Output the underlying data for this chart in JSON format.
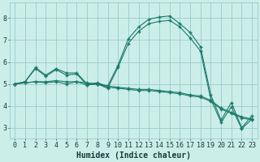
{
  "xlabel": "Humidex (Indice chaleur)",
  "bg_color": "#cceee8",
  "grid_color": "#99cccc",
  "line_color": "#1a7a6a",
  "xlim": [
    -0.5,
    23.5
  ],
  "ylim": [
    2.5,
    8.7
  ],
  "xticks": [
    0,
    1,
    2,
    3,
    4,
    5,
    6,
    7,
    8,
    9,
    10,
    11,
    12,
    13,
    14,
    15,
    16,
    17,
    18,
    19,
    20,
    21,
    22,
    23
  ],
  "yticks": [
    3,
    4,
    5,
    6,
    7,
    8
  ],
  "line1_x": [
    0,
    1,
    2,
    3,
    4,
    5,
    6,
    7,
    8,
    9,
    10,
    11,
    12,
    13,
    14,
    15,
    16,
    17,
    18,
    19,
    20,
    21,
    22,
    23
  ],
  "line1_y": [
    5.0,
    5.1,
    5.75,
    5.4,
    5.7,
    5.5,
    5.5,
    5.0,
    5.05,
    4.9,
    5.85,
    7.05,
    7.6,
    7.95,
    8.05,
    8.1,
    7.75,
    7.35,
    6.7,
    4.5,
    3.35,
    4.15,
    3.0,
    3.55
  ],
  "line2_x": [
    0,
    1,
    2,
    3,
    4,
    5,
    6,
    7,
    8,
    9,
    10,
    11,
    12,
    13,
    14,
    15,
    16,
    17,
    18,
    19,
    20,
    21,
    22,
    23
  ],
  "line2_y": [
    5.0,
    5.05,
    5.1,
    5.05,
    5.1,
    5.0,
    5.1,
    4.95,
    5.0,
    4.85,
    4.8,
    4.75,
    4.7,
    4.7,
    4.65,
    4.6,
    4.55,
    4.45,
    4.4,
    4.2,
    3.85,
    3.65,
    3.45,
    3.35
  ],
  "line3_x": [
    0,
    1,
    2,
    3,
    4,
    5,
    6,
    7,
    8,
    9,
    10,
    11,
    12,
    13,
    14,
    15,
    16,
    17,
    18,
    19,
    20,
    21,
    22,
    23
  ],
  "line3_y": [
    5.0,
    5.1,
    5.7,
    5.35,
    5.65,
    5.4,
    5.45,
    4.95,
    5.0,
    4.8,
    5.75,
    6.85,
    7.4,
    7.75,
    7.85,
    7.9,
    7.6,
    7.1,
    6.5,
    4.3,
    3.25,
    3.95,
    2.95,
    3.4
  ],
  "line4_x": [
    0,
    1,
    2,
    3,
    4,
    5,
    6,
    7,
    8,
    9,
    10,
    11,
    12,
    13,
    14,
    15,
    16,
    17,
    18,
    19,
    20,
    21,
    22,
    23
  ],
  "line4_y": [
    5.0,
    5.05,
    5.1,
    5.1,
    5.15,
    5.1,
    5.1,
    5.05,
    5.0,
    4.9,
    4.85,
    4.8,
    4.75,
    4.75,
    4.7,
    4.65,
    4.6,
    4.5,
    4.45,
    4.25,
    3.9,
    3.7,
    3.5,
    3.4
  ],
  "marker": "+",
  "markersize": 3.5,
  "linewidth": 0.8,
  "font_color": "#1a3a3a",
  "xlabel_fontsize": 7,
  "tick_fontsize": 6
}
